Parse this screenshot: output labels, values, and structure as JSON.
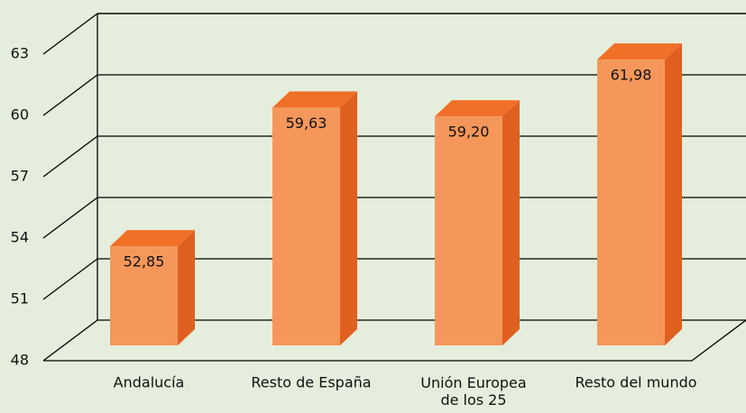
{
  "chart_data": {
    "type": "bar3d",
    "categories": [
      "Andalucía",
      "Resto de España",
      "Unión Europea de los 25",
      "Resto del mundo"
    ],
    "values": [
      52.85,
      59.63,
      59.2,
      61.98
    ],
    "value_labels": [
      "52,85",
      "59,63",
      "59,20",
      "61,98"
    ],
    "color": "#f5975a",
    "ylim": [
      48,
      63
    ],
    "yticks": [
      48,
      51,
      54,
      57,
      60,
      63
    ],
    "grid": true
  }
}
